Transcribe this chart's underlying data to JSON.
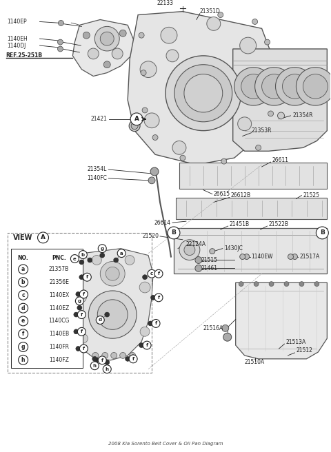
{
  "bg_color": "#ffffff",
  "line_color": "#222222",
  "fs": 5.5,
  "title": "2008 Kia Sorento Belt Cover & Oil Pan Diagram",
  "table_rows": [
    [
      "a",
      "21357B"
    ],
    [
      "b",
      "21356E"
    ],
    [
      "c",
      "1140EX"
    ],
    [
      "d",
      "1140EZ"
    ],
    [
      "e",
      "1140CG"
    ],
    [
      "f",
      "1140EB"
    ],
    [
      "g",
      "1140FR"
    ],
    [
      "h",
      "1140FZ"
    ]
  ]
}
